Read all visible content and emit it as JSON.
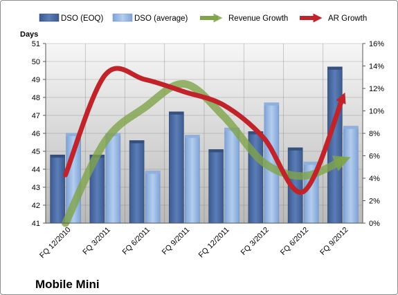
{
  "chart_data": {
    "type": "bar",
    "company": "Mobile Mini",
    "categories": [
      "FQ 12/2010",
      "FQ 3/2011",
      "FQ 6/2011",
      "FQ 9/2011",
      "FQ 12/2011",
      "FQ 3/2012",
      "FQ 6/2012",
      "FQ 9/2012"
    ],
    "y_left": {
      "label": "Days",
      "range": [
        41,
        51
      ],
      "ticks": [
        "41",
        "42",
        "43",
        "44",
        "45",
        "46",
        "47",
        "48",
        "49",
        "50",
        "51"
      ]
    },
    "y_right": {
      "label": "",
      "range": [
        0,
        16
      ],
      "ticks": [
        "0%",
        "2%",
        "4%",
        "6%",
        "8%",
        "10%",
        "12%",
        "14%",
        "16%"
      ]
    },
    "bar_series": [
      {
        "name": "DSO (EOQ)",
        "axis": "left",
        "color": "#4f6fa8",
        "values": [
          44.8,
          44.8,
          45.6,
          47.2,
          45.1,
          46.1,
          45.2,
          49.7
        ]
      },
      {
        "name": "DSO (average)",
        "axis": "left",
        "color": "#9cbbe6",
        "values": [
          46.0,
          46.0,
          43.9,
          45.9,
          46.3,
          47.7,
          44.4,
          46.4
        ]
      }
    ],
    "line_series": [
      {
        "name": "Revenue Growth",
        "axis": "right",
        "color": "#7fa44a",
        "values": [
          0.0,
          7.3,
          10.3,
          12.4,
          9.5,
          5.4,
          4.2,
          5.6
        ]
      },
      {
        "name": "AR Growth",
        "axis": "right",
        "color": "#c0242a",
        "values": [
          4.3,
          13.2,
          12.8,
          11.7,
          10.5,
          7.6,
          2.8,
          11.2
        ]
      }
    ],
    "grid": true,
    "legend_position": "top"
  }
}
